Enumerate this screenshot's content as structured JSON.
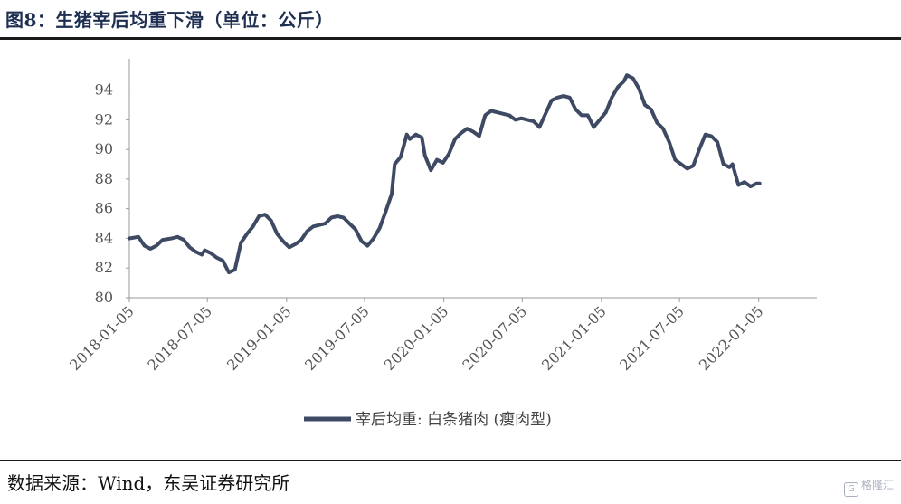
{
  "header": {
    "title": "图8：生猪宰后均重下滑（单位：公斤）"
  },
  "footer": {
    "source": "数据来源：Wind，东吴证券研究所"
  },
  "watermark": {
    "icon": "G",
    "text": "格隆汇"
  },
  "colors": {
    "line": "#3e4a63",
    "axis": "#999999",
    "tick_text": "#555555",
    "title": "#1f2f52"
  },
  "chart_data": {
    "type": "line",
    "title": "图8：生猪宰后均重下滑（单位：公斤）",
    "xlabel": "",
    "ylabel": "",
    "ylim": [
      80,
      95.5
    ],
    "yticks": [
      80,
      82,
      84,
      86,
      88,
      90,
      92,
      94
    ],
    "xlim": [
      "2018-01-05",
      "2022-05-20"
    ],
    "xticks": [
      "2018-01-05",
      "2018-07-05",
      "2019-01-05",
      "2019-07-05",
      "2020-01-05",
      "2020-07-05",
      "2021-01-05",
      "2021-07-05",
      "2022-01-05"
    ],
    "grid": false,
    "legend_position": "bottom-center",
    "series": [
      {
        "name": "宰后均重: 白条猪肉 (瘦肉型)",
        "points": [
          [
            "2018-01-05",
            84.0
          ],
          [
            "2018-01-26",
            84.1
          ],
          [
            "2018-02-09",
            83.5
          ],
          [
            "2018-02-23",
            83.3
          ],
          [
            "2018-03-09",
            83.5
          ],
          [
            "2018-03-23",
            83.9
          ],
          [
            "2018-04-13",
            84.0
          ],
          [
            "2018-04-27",
            84.1
          ],
          [
            "2018-05-11",
            83.9
          ],
          [
            "2018-05-25",
            83.4
          ],
          [
            "2018-06-08",
            83.1
          ],
          [
            "2018-06-22",
            82.9
          ],
          [
            "2018-06-29",
            83.2
          ],
          [
            "2018-07-13",
            83.0
          ],
          [
            "2018-07-27",
            82.7
          ],
          [
            "2018-08-10",
            82.5
          ],
          [
            "2018-08-24",
            81.7
          ],
          [
            "2018-09-07",
            81.9
          ],
          [
            "2018-09-21",
            83.7
          ],
          [
            "2018-10-05",
            84.3
          ],
          [
            "2018-10-19",
            84.8
          ],
          [
            "2018-11-02",
            85.5
          ],
          [
            "2018-11-16",
            85.6
          ],
          [
            "2018-11-30",
            85.2
          ],
          [
            "2018-12-14",
            84.3
          ],
          [
            "2018-12-28",
            83.8
          ],
          [
            "2019-01-11",
            83.4
          ],
          [
            "2019-01-25",
            83.6
          ],
          [
            "2019-02-08",
            83.9
          ],
          [
            "2019-02-22",
            84.5
          ],
          [
            "2019-03-08",
            84.8
          ],
          [
            "2019-03-22",
            84.9
          ],
          [
            "2019-04-05",
            85.0
          ],
          [
            "2019-04-19",
            85.4
          ],
          [
            "2019-05-03",
            85.5
          ],
          [
            "2019-05-17",
            85.4
          ],
          [
            "2019-05-31",
            85.0
          ],
          [
            "2019-06-14",
            84.6
          ],
          [
            "2019-06-28",
            83.8
          ],
          [
            "2019-07-12",
            83.5
          ],
          [
            "2019-07-26",
            84.0
          ],
          [
            "2019-08-09",
            84.7
          ],
          [
            "2019-08-23",
            85.8
          ],
          [
            "2019-09-06",
            87.0
          ],
          [
            "2019-09-13",
            89.0
          ],
          [
            "2019-09-27",
            89.5
          ],
          [
            "2019-10-11",
            91.0
          ],
          [
            "2019-10-18",
            90.7
          ],
          [
            "2019-11-01",
            91.0
          ],
          [
            "2019-11-15",
            90.8
          ],
          [
            "2019-11-22",
            89.6
          ],
          [
            "2019-12-06",
            88.6
          ],
          [
            "2019-12-20",
            89.3
          ],
          [
            "2020-01-03",
            89.1
          ],
          [
            "2020-01-17",
            89.7
          ],
          [
            "2020-01-31",
            90.7
          ],
          [
            "2020-02-14",
            91.1
          ],
          [
            "2020-02-28",
            91.4
          ],
          [
            "2020-03-13",
            91.2
          ],
          [
            "2020-03-27",
            90.9
          ],
          [
            "2020-04-10",
            92.3
          ],
          [
            "2020-04-24",
            92.6
          ],
          [
            "2020-05-08",
            92.5
          ],
          [
            "2020-05-22",
            92.4
          ],
          [
            "2020-06-05",
            92.3
          ],
          [
            "2020-06-19",
            92.0
          ],
          [
            "2020-07-03",
            92.1
          ],
          [
            "2020-07-17",
            92.0
          ],
          [
            "2020-07-31",
            91.9
          ],
          [
            "2020-08-14",
            91.5
          ],
          [
            "2020-08-28",
            92.4
          ],
          [
            "2020-09-11",
            93.3
          ],
          [
            "2020-09-25",
            93.5
          ],
          [
            "2020-10-09",
            93.6
          ],
          [
            "2020-10-23",
            93.5
          ],
          [
            "2020-11-06",
            92.7
          ],
          [
            "2020-11-20",
            92.3
          ],
          [
            "2020-12-04",
            92.3
          ],
          [
            "2020-12-18",
            91.5
          ],
          [
            "2021-01-01",
            92.0
          ],
          [
            "2021-01-15",
            92.5
          ],
          [
            "2021-01-29",
            93.5
          ],
          [
            "2021-02-12",
            94.2
          ],
          [
            "2021-02-26",
            94.6
          ],
          [
            "2021-03-05",
            95.0
          ],
          [
            "2021-03-19",
            94.8
          ],
          [
            "2021-04-02",
            94.1
          ],
          [
            "2021-04-16",
            93.0
          ],
          [
            "2021-04-30",
            92.7
          ],
          [
            "2021-05-14",
            91.8
          ],
          [
            "2021-05-28",
            91.4
          ],
          [
            "2021-06-11",
            90.5
          ],
          [
            "2021-06-25",
            89.3
          ],
          [
            "2021-07-09",
            89.0
          ],
          [
            "2021-07-23",
            88.7
          ],
          [
            "2021-08-06",
            88.9
          ],
          [
            "2021-08-20",
            90.0
          ],
          [
            "2021-09-03",
            91.0
          ],
          [
            "2021-09-17",
            90.9
          ],
          [
            "2021-10-01",
            90.5
          ],
          [
            "2021-10-15",
            89.0
          ],
          [
            "2021-10-29",
            88.8
          ],
          [
            "2021-11-05",
            89.0
          ],
          [
            "2021-11-19",
            87.6
          ],
          [
            "2021-12-03",
            87.8
          ],
          [
            "2021-12-17",
            87.5
          ],
          [
            "2021-12-31",
            87.7
          ],
          [
            "2022-01-07",
            87.7
          ]
        ]
      }
    ]
  }
}
